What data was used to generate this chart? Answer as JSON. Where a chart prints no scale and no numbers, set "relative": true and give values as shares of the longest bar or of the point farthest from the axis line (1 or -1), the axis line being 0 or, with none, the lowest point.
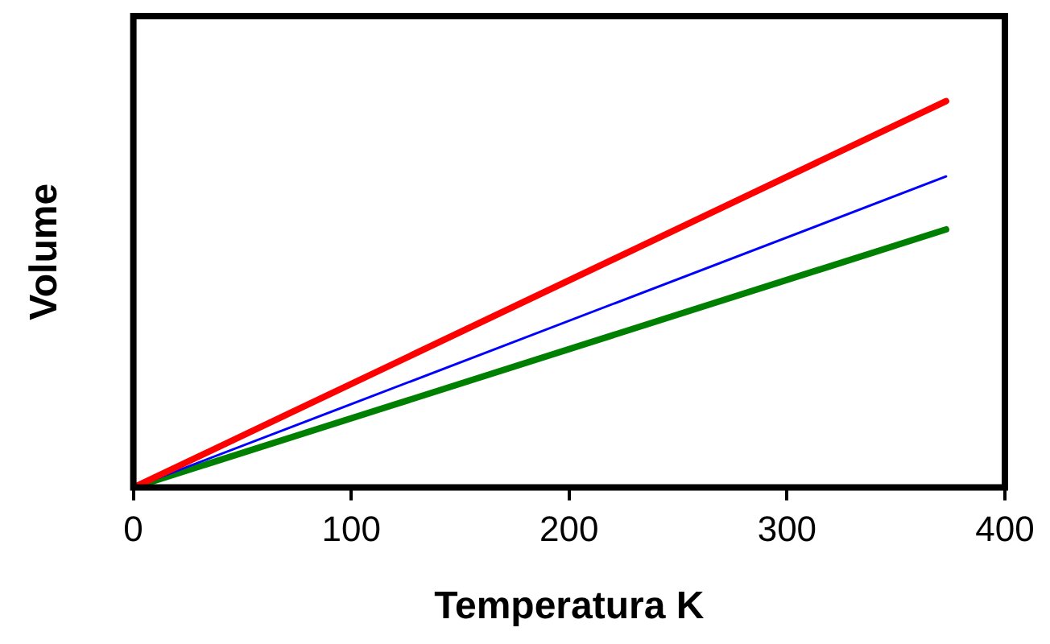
{
  "chart_data": {
    "type": "line",
    "xlabel": "Temperatura K",
    "ylabel": "Volume",
    "relative": true,
    "x": [
      0,
      373
    ],
    "xlim": [
      0,
      400
    ],
    "xticks": [
      0,
      100,
      200,
      300,
      400
    ],
    "tick_labels": "x",
    "grid": false,
    "legend": false,
    "marker": "none",
    "line_style": "solid",
    "series": [
      {
        "color": "#ff0000",
        "values": [
          0,
          1
        ]
      },
      {
        "color": "#0000ff",
        "values": [
          0,
          0.805
        ]
      },
      {
        "color": "#008000",
        "values": [
          0,
          0.668
        ]
      }
    ]
  }
}
